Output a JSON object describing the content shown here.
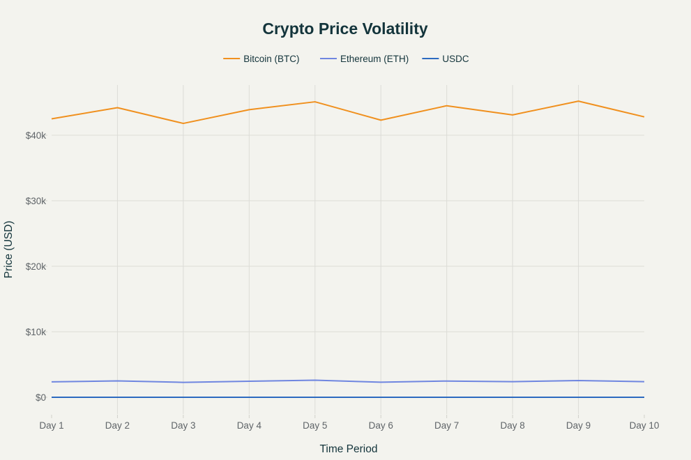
{
  "chart_data": {
    "type": "line",
    "title": "Crypto Price Volatility",
    "xlabel": "Time Period",
    "ylabel": "Price (USD)",
    "categories": [
      "Day 1",
      "Day 2",
      "Day 3",
      "Day 4",
      "Day 5",
      "Day 6",
      "Day 7",
      "Day 8",
      "Day 9",
      "Day 10"
    ],
    "ylim": [
      -2500,
      47700
    ],
    "yticks": [
      0,
      10000,
      20000,
      30000,
      40000
    ],
    "ytick_labels": [
      "$0",
      "$10k",
      "$20k",
      "$30k",
      "$40k"
    ],
    "grid": true,
    "legend_position": "top-center",
    "series": [
      {
        "name": "Bitcoin (BTC)",
        "color": "#f0901e",
        "values": [
          42500,
          44200,
          41800,
          43900,
          45100,
          42300,
          44500,
          43100,
          45200,
          42800
        ]
      },
      {
        "name": "Ethereum (ETH)",
        "color": "#6f86e0",
        "values": [
          2350,
          2500,
          2280,
          2450,
          2600,
          2300,
          2480,
          2380,
          2550,
          2380
        ]
      },
      {
        "name": "USDC",
        "color": "#2c6ac0",
        "values": [
          1,
          1,
          1,
          1,
          1,
          1,
          1,
          1,
          1,
          1
        ]
      }
    ]
  }
}
